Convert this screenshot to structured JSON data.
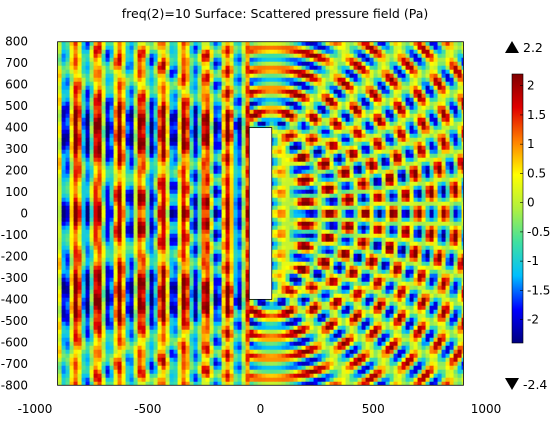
{
  "chart_data": {
    "type": "heatmap",
    "title": "freq(2)=10   Surface: Scattered pressure field (Pa)",
    "xlabel": "",
    "ylabel": "",
    "xlim": [
      -1000,
      1000
    ],
    "ylim": [
      -850,
      850
    ],
    "domain_x": [
      -900,
      900
    ],
    "domain_y": [
      -800,
      800
    ],
    "x_ticks": [
      -1000,
      -500,
      0,
      500,
      1000
    ],
    "y_ticks": [
      800,
      700,
      600,
      500,
      400,
      300,
      200,
      100,
      0,
      -100,
      -200,
      -300,
      -400,
      -500,
      -600,
      -700,
      -800
    ],
    "obstacle": {
      "x": [
        -50,
        50
      ],
      "y": [
        -400,
        400
      ]
    },
    "color_range": {
      "min": -2.4,
      "max": 2.2,
      "max_label": "2.2",
      "min_label": "-2.4"
    },
    "colorbar_ticks": [
      {
        "value": 2,
        "label": "2"
      },
      {
        "value": 1.5,
        "label": "1.5"
      },
      {
        "value": 1,
        "label": "1"
      },
      {
        "value": 0.5,
        "label": "0.5"
      },
      {
        "value": 0,
        "label": "0"
      },
      {
        "value": -0.5,
        "label": "-0.5"
      },
      {
        "value": -1,
        "label": "-1"
      },
      {
        "value": -1.5,
        "label": "-1.5"
      },
      {
        "value": -2,
        "label": "-2"
      }
    ],
    "colormap": [
      "#00007f",
      "#0000ff",
      "#00bfff",
      "#40e0a0",
      "#b0f040",
      "#ffff00",
      "#ff8000",
      "#e00000",
      "#7f0000"
    ]
  }
}
